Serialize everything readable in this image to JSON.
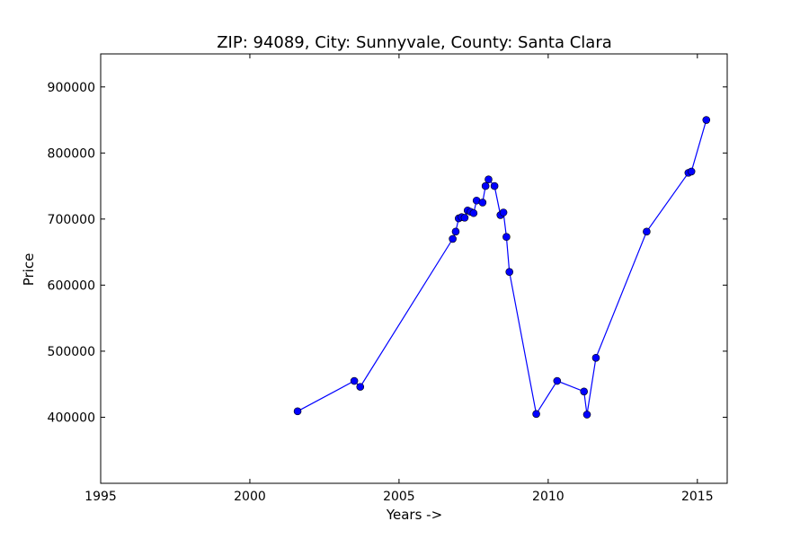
{
  "chart_data": {
    "type": "line",
    "title": "ZIP: 94089, City: Sunnyvale, County: Santa Clara",
    "xlabel": "Years ->",
    "ylabel": "Price",
    "xlim": [
      1995,
      2016
    ],
    "ylim": [
      300000,
      950000
    ],
    "xticks": [
      1995,
      2000,
      2005,
      2010,
      2015
    ],
    "yticks": [
      400000,
      500000,
      600000,
      700000,
      800000,
      900000
    ],
    "grid": false,
    "series": [
      {
        "color": "#0000ff",
        "marker": "circle",
        "points": [
          [
            2001.6,
            409000
          ],
          [
            2003.5,
            455000
          ],
          [
            2003.7,
            446000
          ],
          [
            2006.8,
            670000
          ],
          [
            2006.9,
            681000
          ],
          [
            2007.0,
            701000
          ],
          [
            2007.1,
            703000
          ],
          [
            2007.2,
            702000
          ],
          [
            2007.3,
            713000
          ],
          [
            2007.4,
            711000
          ],
          [
            2007.5,
            709000
          ],
          [
            2007.6,
            728000
          ],
          [
            2007.8,
            725000
          ],
          [
            2007.9,
            750000
          ],
          [
            2008.0,
            760000
          ],
          [
            2008.2,
            750000
          ],
          [
            2008.4,
            706000
          ],
          [
            2008.5,
            710000
          ],
          [
            2008.6,
            673000
          ],
          [
            2008.7,
            620000
          ],
          [
            2009.6,
            405000
          ],
          [
            2010.3,
            455000
          ],
          [
            2011.2,
            439000
          ],
          [
            2011.3,
            404000
          ],
          [
            2011.6,
            490000
          ],
          [
            2013.3,
            681000
          ],
          [
            2014.7,
            770000
          ],
          [
            2014.8,
            772000
          ],
          [
            2015.3,
            850000
          ]
        ]
      }
    ]
  }
}
